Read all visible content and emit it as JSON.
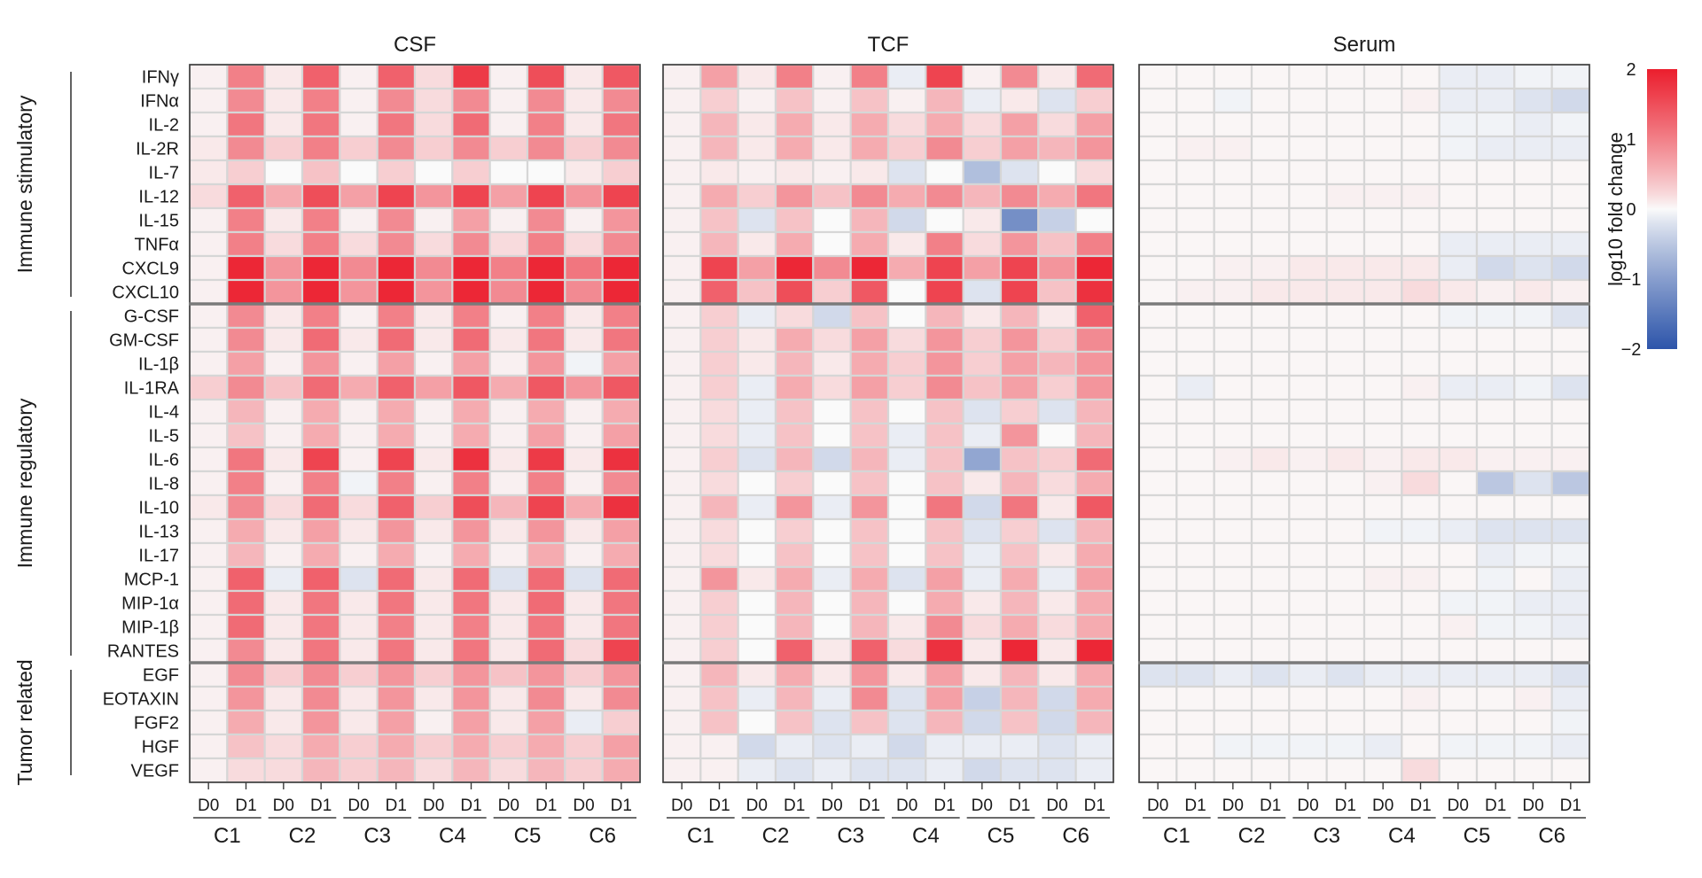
{
  "chart_data": {
    "type": "heatmap",
    "panels": [
      "CSF",
      "TCF",
      "Serum"
    ],
    "groups": [
      "Immune stimulatory",
      "Immune regulatory",
      "Tumor related"
    ],
    "group_sizes": [
      10,
      15,
      5
    ],
    "rows": [
      "IFNγ",
      "IFNα",
      "IL-2",
      "IL-2R",
      "IL-7",
      "IL-12",
      "IL-15",
      "TNFα",
      "CXCL9",
      "CXCL10",
      "G-CSF",
      "GM-CSF",
      "IL-1β",
      "IL-1RA",
      "IL-4",
      "IL-5",
      "IL-6",
      "IL-8",
      "IL-10",
      "IL-13",
      "IL-17",
      "MCP-1",
      "MIP-1α",
      "MIP-1β",
      "RANTES",
      "EGF",
      "EOTAXIN",
      "FGF2",
      "HGF",
      "VEGF"
    ],
    "columns": [
      "D0",
      "D1",
      "D0",
      "D1",
      "D0",
      "D1",
      "D0",
      "D1",
      "D0",
      "D1",
      "D0",
      "D1"
    ],
    "column_groups": [
      "C1",
      "C2",
      "C3",
      "C4",
      "C5",
      "C6"
    ],
    "colorbar": {
      "label": "log10 fold change",
      "min": -2,
      "max": 2,
      "ticks": [
        "2",
        "1",
        "0",
        "−1",
        "−2"
      ]
    },
    "values": {
      "CSF": [
        [
          0.05,
          1.0,
          0.1,
          1.3,
          0.05,
          1.3,
          0.2,
          1.7,
          0.05,
          1.5,
          0.1,
          1.4
        ],
        [
          0.05,
          0.9,
          0.1,
          1.0,
          0.05,
          0.9,
          0.2,
          0.9,
          0.05,
          0.9,
          0.1,
          0.9
        ],
        [
          0.05,
          1.1,
          0.1,
          1.1,
          0.05,
          1.1,
          0.2,
          1.2,
          0.05,
          1.0,
          0.1,
          1.1
        ],
        [
          0.1,
          0.9,
          0.3,
          1.0,
          0.3,
          0.9,
          0.3,
          0.9,
          0.3,
          0.9,
          0.3,
          0.9
        ],
        [
          0.1,
          0.3,
          0.0,
          0.4,
          0.0,
          0.3,
          0.0,
          0.3,
          0.0,
          0.0,
          0.1,
          0.3
        ],
        [
          0.2,
          1.3,
          0.6,
          1.5,
          0.7,
          1.6,
          0.8,
          1.6,
          0.7,
          1.6,
          0.8,
          1.6
        ],
        [
          0.05,
          1.0,
          0.1,
          1.0,
          0.05,
          0.9,
          0.05,
          0.7,
          0.05,
          0.9,
          0.05,
          0.8
        ],
        [
          0.05,
          1.0,
          0.2,
          1.0,
          0.2,
          0.9,
          0.2,
          0.9,
          0.2,
          1.0,
          0.2,
          0.9
        ],
        [
          0.05,
          1.9,
          0.8,
          1.9,
          0.9,
          1.9,
          0.9,
          1.9,
          1.0,
          1.9,
          1.1,
          1.9
        ],
        [
          0.05,
          1.9,
          0.8,
          1.9,
          0.8,
          1.9,
          0.8,
          1.9,
          0.9,
          1.9,
          0.9,
          1.9
        ],
        [
          0.05,
          0.9,
          0.1,
          1.0,
          0.05,
          1.0,
          0.1,
          1.0,
          0.05,
          1.0,
          0.1,
          1.0
        ],
        [
          0.05,
          0.9,
          0.1,
          1.2,
          0.1,
          1.2,
          0.1,
          1.2,
          0.1,
          1.1,
          0.1,
          1.1
        ],
        [
          0.05,
          0.7,
          0.05,
          0.8,
          0.05,
          0.7,
          0.05,
          0.7,
          0.05,
          0.8,
          -0.05,
          0.7
        ],
        [
          0.3,
          0.9,
          0.4,
          1.2,
          0.6,
          1.3,
          0.7,
          1.4,
          0.6,
          1.4,
          0.8,
          1.4
        ],
        [
          0.05,
          0.5,
          0.05,
          0.6,
          0.05,
          0.6,
          0.05,
          0.6,
          0.05,
          0.6,
          0.05,
          0.6
        ],
        [
          0.05,
          0.4,
          0.05,
          0.6,
          0.05,
          0.6,
          0.05,
          0.6,
          0.05,
          0.7,
          0.05,
          0.7
        ],
        [
          0.05,
          1.1,
          0.1,
          1.6,
          0.05,
          1.6,
          0.1,
          1.8,
          0.1,
          1.7,
          0.1,
          1.8
        ],
        [
          0.05,
          1.0,
          0.05,
          1.0,
          -0.05,
          1.0,
          0.05,
          1.0,
          0.05,
          1.0,
          0.05,
          0.9
        ],
        [
          0.1,
          0.9,
          0.2,
          1.2,
          0.2,
          1.3,
          0.3,
          1.5,
          0.5,
          1.6,
          0.6,
          1.8
        ],
        [
          0.05,
          0.6,
          0.1,
          0.7,
          0.1,
          0.8,
          0.1,
          0.8,
          0.1,
          0.8,
          0.1,
          0.7
        ],
        [
          0.05,
          0.5,
          0.05,
          0.6,
          0.05,
          0.6,
          0.05,
          0.6,
          0.05,
          0.6,
          0.05,
          0.6
        ],
        [
          0.05,
          1.3,
          -0.1,
          1.3,
          -0.2,
          1.2,
          0.1,
          1.2,
          -0.2,
          1.2,
          -0.2,
          1.2
        ],
        [
          0.05,
          1.2,
          0.1,
          1.1,
          0.1,
          1.1,
          0.1,
          1.1,
          0.1,
          1.2,
          0.1,
          1.1
        ],
        [
          0.05,
          1.2,
          0.1,
          1.1,
          0.1,
          1.0,
          0.1,
          1.0,
          0.1,
          1.1,
          0.1,
          1.1
        ],
        [
          0.05,
          0.9,
          0.1,
          1.1,
          0.1,
          1.1,
          0.1,
          1.1,
          0.1,
          1.2,
          0.2,
          1.6
        ],
        [
          0.05,
          0.9,
          0.3,
          0.9,
          0.3,
          0.8,
          0.3,
          0.8,
          0.4,
          0.8,
          0.3,
          0.8
        ],
        [
          0.05,
          0.8,
          0.1,
          0.9,
          0.1,
          0.8,
          0.1,
          0.8,
          0.1,
          0.9,
          0.1,
          0.9
        ],
        [
          0.05,
          0.6,
          0.1,
          0.8,
          0.1,
          0.7,
          0.05,
          0.7,
          0.1,
          0.7,
          -0.1,
          0.3
        ],
        [
          0.05,
          0.4,
          0.2,
          0.6,
          0.3,
          0.6,
          0.3,
          0.6,
          0.3,
          0.6,
          0.3,
          0.7
        ],
        [
          0.05,
          0.2,
          0.2,
          0.5,
          0.3,
          0.5,
          0.2,
          0.5,
          0.2,
          0.5,
          0.3,
          0.6
        ]
      ],
      "TCF": [
        [
          0.05,
          0.7,
          0.1,
          1.0,
          0.05,
          1.0,
          -0.1,
          1.6,
          0.05,
          0.9,
          0.1,
          1.2
        ],
        [
          0.05,
          0.3,
          0.05,
          0.4,
          0.05,
          0.4,
          0.05,
          0.5,
          -0.1,
          0.1,
          -0.2,
          0.3
        ],
        [
          0.05,
          0.5,
          0.1,
          0.6,
          0.1,
          0.6,
          0.2,
          0.6,
          0.2,
          0.7,
          0.2,
          0.7
        ],
        [
          0.05,
          0.5,
          0.1,
          0.6,
          0.1,
          0.6,
          0.3,
          0.9,
          0.3,
          0.7,
          0.5,
          0.8
        ],
        [
          0.05,
          0.1,
          0.05,
          0.1,
          0.05,
          0.1,
          -0.2,
          0.0,
          -0.6,
          -0.2,
          0.0,
          0.2
        ],
        [
          0.05,
          0.6,
          0.3,
          0.8,
          0.4,
          0.9,
          0.6,
          0.9,
          0.5,
          0.9,
          0.6,
          1.1
        ],
        [
          0.05,
          0.4,
          -0.2,
          0.4,
          0.0,
          0.5,
          -0.3,
          0.0,
          0.1,
          -1.2,
          -0.4,
          0.0
        ],
        [
          0.05,
          0.5,
          0.1,
          0.6,
          0.0,
          0.6,
          0.1,
          1.0,
          0.2,
          0.8,
          0.4,
          1.0
        ],
        [
          0.05,
          1.6,
          0.7,
          1.9,
          0.9,
          1.9,
          0.6,
          1.6,
          0.7,
          1.6,
          0.8,
          1.9
        ],
        [
          0.05,
          1.3,
          0.4,
          1.5,
          0.3,
          1.4,
          0.0,
          1.6,
          -0.2,
          1.6,
          0.4,
          1.8
        ],
        [
          0.05,
          0.3,
          -0.1,
          0.2,
          -0.3,
          0.4,
          0.0,
          0.5,
          0.1,
          0.5,
          0.1,
          1.3
        ],
        [
          0.05,
          0.3,
          0.1,
          0.6,
          0.2,
          0.7,
          0.2,
          0.8,
          0.3,
          0.8,
          0.3,
          0.9
        ],
        [
          0.05,
          0.3,
          0.1,
          0.5,
          0.1,
          0.6,
          0.3,
          0.8,
          0.3,
          0.7,
          0.5,
          0.8
        ],
        [
          0.05,
          0.3,
          -0.1,
          0.6,
          0.2,
          0.7,
          0.3,
          0.9,
          0.4,
          0.7,
          0.3,
          0.8
        ],
        [
          0.05,
          0.2,
          -0.1,
          0.4,
          0.0,
          0.4,
          0.0,
          0.4,
          -0.2,
          0.3,
          -0.2,
          0.5
        ],
        [
          0.05,
          0.2,
          -0.1,
          0.4,
          0.0,
          0.4,
          -0.1,
          0.4,
          -0.1,
          0.8,
          0.0,
          0.5
        ],
        [
          0.05,
          0.3,
          -0.2,
          0.5,
          -0.3,
          0.5,
          -0.1,
          0.4,
          -0.9,
          0.4,
          0.3,
          1.2
        ],
        [
          0.05,
          0.2,
          0.0,
          0.3,
          0.0,
          0.4,
          0.0,
          0.4,
          0.1,
          0.5,
          0.2,
          0.6
        ],
        [
          0.05,
          0.5,
          -0.1,
          0.8,
          -0.1,
          0.8,
          0.0,
          1.1,
          -0.3,
          1.1,
          0.1,
          1.4
        ],
        [
          0.05,
          0.2,
          0.0,
          0.3,
          0.0,
          0.4,
          0.0,
          0.4,
          -0.2,
          0.3,
          -0.2,
          0.5
        ],
        [
          0.05,
          0.2,
          0.0,
          0.4,
          0.0,
          0.4,
          0.0,
          0.4,
          -0.1,
          0.4,
          0.1,
          0.6
        ],
        [
          0.05,
          0.8,
          0.1,
          0.6,
          -0.1,
          0.6,
          -0.2,
          0.7,
          -0.1,
          0.6,
          -0.1,
          0.7
        ],
        [
          0.05,
          0.3,
          0.0,
          0.5,
          0.0,
          0.5,
          0.0,
          0.6,
          0.1,
          0.5,
          0.1,
          0.6
        ],
        [
          0.05,
          0.3,
          0.0,
          0.5,
          0.0,
          0.5,
          0.1,
          0.9,
          0.2,
          0.6,
          0.2,
          0.6
        ],
        [
          0.05,
          0.3,
          0.0,
          1.3,
          0.1,
          1.3,
          0.2,
          1.8,
          0.1,
          1.9,
          0.1,
          1.9
        ],
        [
          0.05,
          0.5,
          0.1,
          0.6,
          0.1,
          0.8,
          0.1,
          0.7,
          0.1,
          0.5,
          0.1,
          0.6
        ],
        [
          0.05,
          0.4,
          -0.1,
          0.5,
          -0.1,
          0.9,
          -0.2,
          0.7,
          -0.4,
          0.5,
          -0.3,
          0.6
        ],
        [
          0.05,
          0.4,
          0.0,
          0.4,
          -0.2,
          0.4,
          -0.2,
          0.5,
          -0.3,
          0.4,
          -0.3,
          0.5
        ],
        [
          0.05,
          0.05,
          -0.3,
          -0.1,
          -0.2,
          -0.1,
          -0.3,
          -0.1,
          -0.1,
          -0.1,
          -0.2,
          -0.1
        ],
        [
          0.05,
          0.05,
          -0.1,
          -0.2,
          -0.1,
          -0.2,
          -0.2,
          -0.1,
          -0.3,
          -0.2,
          -0.2,
          -0.1
        ]
      ],
      "Serum": [
        [
          0.02,
          0.02,
          0.02,
          0.02,
          0.02,
          0.02,
          0.02,
          0.02,
          -0.1,
          -0.1,
          -0.05,
          -0.05
        ],
        [
          0.02,
          0.02,
          -0.05,
          0.02,
          0.02,
          0.02,
          0.02,
          0.05,
          -0.1,
          -0.1,
          -0.2,
          -0.3
        ],
        [
          0.02,
          0.02,
          0.02,
          0.02,
          0.02,
          0.02,
          0.02,
          0.02,
          -0.05,
          -0.05,
          -0.1,
          -0.05
        ],
        [
          0.02,
          0.05,
          0.05,
          0.02,
          0.02,
          0.02,
          0.02,
          0.02,
          -0.05,
          -0.1,
          -0.1,
          -0.1
        ],
        [
          0.02,
          0.02,
          0.02,
          0.02,
          0.02,
          0.02,
          0.02,
          0.02,
          0.02,
          0.02,
          0.02,
          0.02
        ],
        [
          0.02,
          0.02,
          0.02,
          0.02,
          0.02,
          0.05,
          0.05,
          0.05,
          0.02,
          0.02,
          0.02,
          0.02
        ],
        [
          0.02,
          0.02,
          0.02,
          0.02,
          0.02,
          0.02,
          0.02,
          0.02,
          0.02,
          0.02,
          0.02,
          0.02
        ],
        [
          0.02,
          0.02,
          0.02,
          0.02,
          0.02,
          0.02,
          0.02,
          0.02,
          -0.1,
          -0.1,
          -0.1,
          -0.1
        ],
        [
          0.02,
          0.02,
          0.05,
          0.05,
          0.1,
          0.1,
          0.1,
          0.1,
          -0.1,
          -0.3,
          -0.2,
          -0.3
        ],
        [
          0.02,
          0.05,
          0.05,
          0.1,
          0.1,
          0.1,
          0.1,
          0.2,
          0.1,
          0.05,
          0.1,
          0.05
        ],
        [
          0.02,
          0.02,
          0.02,
          0.02,
          0.02,
          0.02,
          0.02,
          0.02,
          -0.05,
          -0.05,
          -0.05,
          -0.2
        ],
        [
          0.02,
          0.02,
          0.02,
          0.02,
          0.02,
          0.02,
          0.02,
          0.02,
          0.02,
          0.02,
          0.02,
          0.02
        ],
        [
          0.02,
          0.02,
          0.02,
          0.02,
          0.02,
          0.02,
          0.02,
          0.02,
          0.02,
          0.02,
          0.02,
          0.02
        ],
        [
          0.02,
          -0.1,
          0.02,
          0.02,
          0.02,
          0.02,
          0.02,
          0.05,
          -0.1,
          -0.1,
          -0.05,
          -0.2
        ],
        [
          0.02,
          0.02,
          0.02,
          0.02,
          0.02,
          0.02,
          0.02,
          0.02,
          0.02,
          0.02,
          0.02,
          0.02
        ],
        [
          0.02,
          0.02,
          0.02,
          0.02,
          0.02,
          0.02,
          0.02,
          0.02,
          0.02,
          0.02,
          0.02,
          0.02
        ],
        [
          0.02,
          0.02,
          0.05,
          0.1,
          0.05,
          0.1,
          0.05,
          0.1,
          0.1,
          0.05,
          0.05,
          0.05
        ],
        [
          0.02,
          0.02,
          0.02,
          0.02,
          0.02,
          0.02,
          0.05,
          0.2,
          0.02,
          -0.5,
          -0.2,
          -0.5
        ],
        [
          0.02,
          0.02,
          0.02,
          0.02,
          0.02,
          0.02,
          0.02,
          0.02,
          0.02,
          0.02,
          0.02,
          0.02
        ],
        [
          0.02,
          0.02,
          0.02,
          0.02,
          0.02,
          0.02,
          -0.05,
          -0.05,
          -0.1,
          -0.2,
          -0.2,
          -0.2
        ],
        [
          0.02,
          0.02,
          0.02,
          0.02,
          0.02,
          0.02,
          0.02,
          0.02,
          0.02,
          -0.1,
          -0.05,
          -0.05
        ],
        [
          0.02,
          0.02,
          0.02,
          0.02,
          0.02,
          0.02,
          0.05,
          0.05,
          0.02,
          -0.05,
          0.02,
          -0.1
        ],
        [
          0.02,
          0.02,
          0.02,
          0.02,
          0.02,
          0.02,
          0.02,
          0.02,
          -0.05,
          -0.05,
          -0.1,
          -0.1
        ],
        [
          0.02,
          0.02,
          0.02,
          0.02,
          0.02,
          0.02,
          0.02,
          0.02,
          0.05,
          -0.05,
          -0.05,
          -0.1
        ],
        [
          0.02,
          0.02,
          0.02,
          0.02,
          0.02,
          0.02,
          0.02,
          0.02,
          0.02,
          0.02,
          0.02,
          0.02
        ],
        [
          -0.2,
          -0.2,
          -0.1,
          -0.2,
          -0.1,
          -0.2,
          -0.1,
          -0.1,
          -0.1,
          -0.1,
          -0.1,
          -0.2
        ],
        [
          0.02,
          0.02,
          0.02,
          0.02,
          0.02,
          0.02,
          0.02,
          0.05,
          0.02,
          0.02,
          0.05,
          -0.1
        ],
        [
          0.02,
          0.02,
          0.02,
          0.02,
          0.02,
          0.02,
          0.02,
          0.02,
          0.02,
          0.02,
          0.02,
          -0.05
        ],
        [
          0.02,
          0.02,
          -0.05,
          -0.05,
          -0.05,
          -0.05,
          -0.1,
          0.02,
          -0.05,
          -0.05,
          -0.05,
          -0.1
        ],
        [
          0.02,
          0.02,
          0.02,
          0.02,
          0.02,
          0.02,
          0.02,
          0.2,
          0.02,
          0.02,
          0.02,
          0.02
        ]
      ]
    }
  }
}
